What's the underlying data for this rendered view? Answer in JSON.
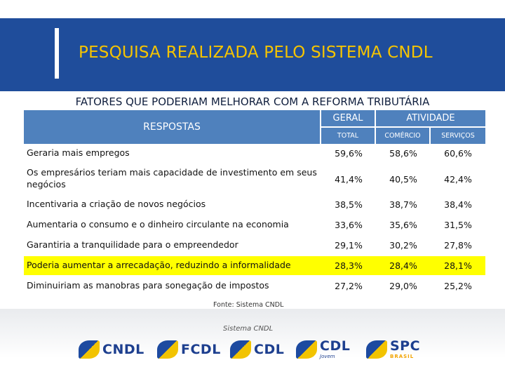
{
  "header": {
    "title": "PESQUISA REALIZADA PELO SISTEMA CNDL"
  },
  "subtitle": "FATORES QUE PODERIAM MELHORAR COM A REFORMA TRIBUTÁRIA",
  "table": {
    "col_respostas": "RESPOSTAS",
    "col_geral": "GERAL",
    "col_atividade": "ATIVIDADE",
    "sub_total": "TOTAL",
    "sub_comercio": "COMÉRCIO",
    "sub_servicos": "SERVIÇOS",
    "rows": [
      {
        "label": "Geraria mais empregos",
        "total": "59,6%",
        "comercio": "58,6%",
        "servicos": "60,6%"
      },
      {
        "label": "Os empresários teriam mais capacidade de investimento em seus negócios",
        "total": "41,4%",
        "comercio": "40,5%",
        "servicos": "42,4%"
      },
      {
        "label": "Incentivaria a criação de novos negócios",
        "total": "38,5%",
        "comercio": "38,7%",
        "servicos": "38,4%"
      },
      {
        "label": "Aumentaria o consumo e o dinheiro circulante na economia",
        "total": "33,6%",
        "comercio": "35,6%",
        "servicos": "31,5%"
      },
      {
        "label": "Garantiria a tranquilidade para o empreendedor",
        "total": "29,1%",
        "comercio": "30,2%",
        "servicos": "27,8%"
      },
      {
        "label": "Poderia aumentar a arrecadação, reduzindo a informalidade",
        "total": "28,3%",
        "comercio": "28,4%",
        "servicos": "28,1%"
      },
      {
        "label": "Diminuiriam as manobras para sonegação de impostos",
        "total": "27,2%",
        "comercio": "29,0%",
        "servicos": "25,2%"
      }
    ],
    "highlight_color": "#ffff00"
  },
  "source": "Fonte:  Sistema CNDL",
  "footer": {
    "caption": "Sistema CNDL",
    "logos": [
      {
        "name": "CNDL",
        "sub": ""
      },
      {
        "name": "FCDL",
        "sub": ""
      },
      {
        "name": "CDL",
        "sub": ""
      },
      {
        "name": "CDL",
        "sub": "Jovem"
      },
      {
        "name": "SPC",
        "sub": "BRASIL"
      }
    ]
  },
  "colors": {
    "header_bg": "#1f4d9b",
    "title": "#f6c400",
    "table_header": "#4f81bd"
  }
}
